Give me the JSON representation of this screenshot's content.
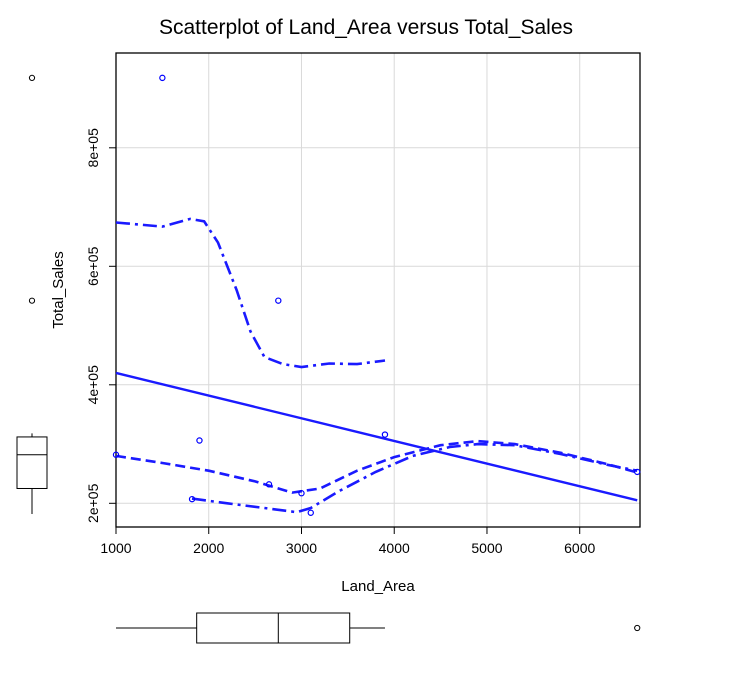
{
  "chart_data": {
    "type": "scatter",
    "title": "Scatterplot of Land_Area versus Total_Sales",
    "xlabel": "Land_Area",
    "ylabel": "Total_Sales",
    "xlim": [
      1000,
      6650
    ],
    "ylim": [
      160000,
      960000
    ],
    "x_ticks": [
      1000,
      2000,
      3000,
      4000,
      5000,
      6000
    ],
    "x_tick_labels": [
      "1000",
      "2000",
      "3000",
      "4000",
      "5000",
      "6000"
    ],
    "y_ticks": [
      200000,
      400000,
      600000,
      800000
    ],
    "y_tick_labels": [
      "2e+05",
      "4e+05",
      "6e+05",
      "8e+05"
    ],
    "grid": true,
    "point_color": "#0000ff",
    "line_color": "#1a1aff",
    "points": [
      {
        "x": 1500,
        "y": 918000
      },
      {
        "x": 2750,
        "y": 542000
      },
      {
        "x": 1000,
        "y": 282000
      },
      {
        "x": 1900,
        "y": 306000
      },
      {
        "x": 3900,
        "y": 316000
      },
      {
        "x": 2650,
        "y": 232000
      },
      {
        "x": 3000,
        "y": 217000
      },
      {
        "x": 1820,
        "y": 207000
      },
      {
        "x": 3100,
        "y": 184000
      },
      {
        "x": 6620,
        "y": 253000
      }
    ],
    "regression_line": [
      {
        "x": 1000,
        "y": 420000
      },
      {
        "x": 6620,
        "y": 205000
      }
    ],
    "smooth_line": [
      {
        "x": 1000,
        "y": 280000
      },
      {
        "x": 1500,
        "y": 268000
      },
      {
        "x": 2000,
        "y": 255000
      },
      {
        "x": 2500,
        "y": 237000
      },
      {
        "x": 2900,
        "y": 218000
      },
      {
        "x": 3200,
        "y": 225000
      },
      {
        "x": 3600,
        "y": 255000
      },
      {
        "x": 4000,
        "y": 278000
      },
      {
        "x": 4500,
        "y": 298000
      },
      {
        "x": 4900,
        "y": 305000
      },
      {
        "x": 5300,
        "y": 300000
      },
      {
        "x": 5800,
        "y": 285000
      },
      {
        "x": 6300,
        "y": 266000
      },
      {
        "x": 6620,
        "y": 252000
      }
    ],
    "upper_spread": [
      {
        "x": 1000,
        "y": 674000
      },
      {
        "x": 1500,
        "y": 667000
      },
      {
        "x": 1800,
        "y": 680000
      },
      {
        "x": 1950,
        "y": 676000
      },
      {
        "x": 2100,
        "y": 640000
      },
      {
        "x": 2300,
        "y": 560000
      },
      {
        "x": 2450,
        "y": 490000
      },
      {
        "x": 2600,
        "y": 447000
      },
      {
        "x": 2800,
        "y": 435000
      },
      {
        "x": 3000,
        "y": 430000
      },
      {
        "x": 3300,
        "y": 436000
      },
      {
        "x": 3600,
        "y": 435000
      },
      {
        "x": 3900,
        "y": 441000
      }
    ],
    "lower_spread": [
      {
        "x": 1820,
        "y": 208000
      },
      {
        "x": 2200,
        "y": 200000
      },
      {
        "x": 2600,
        "y": 192000
      },
      {
        "x": 2950,
        "y": 185000
      },
      {
        "x": 3100,
        "y": 192000
      },
      {
        "x": 3400,
        "y": 220000
      },
      {
        "x": 3800,
        "y": 253000
      },
      {
        "x": 4200,
        "y": 280000
      },
      {
        "x": 4600,
        "y": 295000
      },
      {
        "x": 4900,
        "y": 300000
      },
      {
        "x": 5300,
        "y": 298000
      },
      {
        "x": 5800,
        "y": 283000
      },
      {
        "x": 6300,
        "y": 265000
      },
      {
        "x": 6620,
        "y": 255000
      }
    ],
    "y_marginal": {
      "min": 182000,
      "q1": 225000,
      "median": 282000,
      "q3": 312000,
      "whisker_high": 318000,
      "outliers": [
        542000,
        918000
      ]
    },
    "x_marginal": {
      "min": 1000,
      "q1": 1870,
      "median": 2750,
      "q3": 3520,
      "whisker_high": 3900,
      "outliers": [
        6620
      ]
    }
  }
}
